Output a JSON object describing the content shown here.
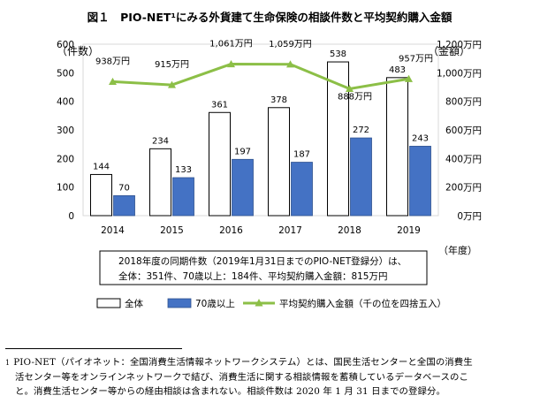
{
  "chart_data": {
    "type": "bar",
    "title": "図１　PIO-NET¹にみる外貨建て生命保険の相談件数と平均契約購入金額",
    "categories": [
      "2014",
      "2015",
      "2016",
      "2017",
      "2018",
      "2019"
    ],
    "xlabel": "（年度）",
    "ylabel_left": "（件数）",
    "ylabel_right": "（金額）",
    "ylim_left": [
      0,
      600
    ],
    "yticks_left": [
      "0",
      "100",
      "200",
      "300",
      "400",
      "500",
      "600"
    ],
    "ylim_right": [
      0,
      1200
    ],
    "yticks_right": [
      "0万円",
      "200万円",
      "400万円",
      "600万円",
      "800万円",
      "1,000万円",
      "1,200万円"
    ],
    "grid": false,
    "legend_position": "bottom",
    "series": [
      {
        "name": "全体",
        "kind": "bar",
        "axis": "left",
        "color": "#ffffff",
        "values": [
          144,
          234,
          361,
          378,
          538,
          483
        ],
        "labels": [
          "144",
          "234",
          "361",
          "378",
          "538",
          "483"
        ]
      },
      {
        "name": "70歳以上",
        "kind": "bar",
        "axis": "left",
        "color": "#4472c4",
        "values": [
          70,
          133,
          197,
          187,
          272,
          243
        ],
        "labels": [
          "70",
          "133",
          "197",
          "187",
          "272",
          "243"
        ]
      },
      {
        "name": "平均契約購入金額（千の位を四捨五入）",
        "kind": "line",
        "axis": "right",
        "color": "#8cbf47",
        "values": [
          938,
          915,
          1061,
          1059,
          888,
          957
        ],
        "labels": [
          "938万円",
          "915万円",
          "1,061万円",
          "1,059万円",
          "888万円",
          "957万円"
        ]
      }
    ],
    "annotation": [
      "2018年度の同期件数（2019年1月31日までのPIO-NET登録分）は、",
      "全体：351件、70歳以上：184件、平均契約購入金額：815万円"
    ]
  },
  "footnote": {
    "mark": "1",
    "lines": [
      "PIO-NET（パイオネット：全国消費生活情報ネットワークシステム）とは、国民生活センターと全国の消費生",
      "活センター等をオンラインネットワークで結び、消費生活に関する相談情報を蓄積しているデータベースのこ",
      "と。消費生活センター等からの経由相談は含まれない。相談件数は 2020 年 1 月 31 日までの登録分。"
    ]
  }
}
